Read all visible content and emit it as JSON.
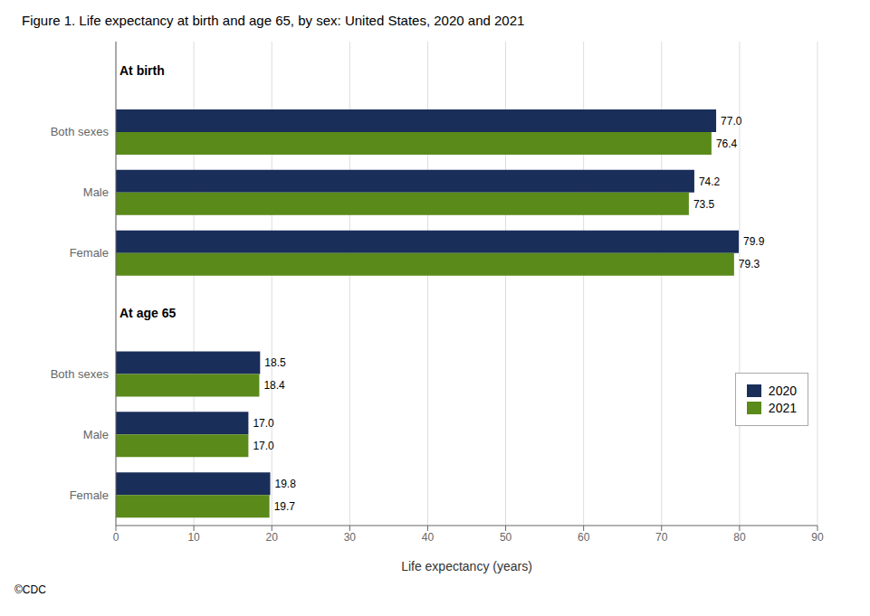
{
  "chart_data": {
    "type": "bar",
    "orientation": "horizontal",
    "title": "Figure 1. Life expectancy at birth and age 65, by sex: United States, 2020 and 2021",
    "xlabel": "Life expectancy (years)",
    "xlim": [
      0,
      90
    ],
    "xticks": [
      0,
      10,
      20,
      30,
      40,
      50,
      60,
      70,
      80,
      90
    ],
    "grid": true,
    "legend": "lower right",
    "data_labels": true,
    "footer": "©CDC",
    "groups": [
      {
        "label": "At birth",
        "categories": [
          "Both sexes",
          "Male",
          "Female"
        ]
      },
      {
        "label": "At age 65",
        "categories": [
          "Both sexes",
          "Male",
          "Female"
        ]
      }
    ],
    "series": [
      {
        "name": "2020",
        "color": "#1a2e5a",
        "values": [
          77.0,
          74.2,
          79.9,
          18.5,
          17.0,
          19.8
        ],
        "value_labels": [
          "77.0",
          "74.2",
          "79.9",
          "18.5",
          "17.0",
          "19.8"
        ]
      },
      {
        "name": "2021",
        "color": "#5a8a1a",
        "values": [
          76.4,
          73.5,
          79.3,
          18.4,
          17.0,
          19.7
        ],
        "value_labels": [
          "76.4",
          "73.5",
          "79.3",
          "18.4",
          "17.0",
          "19.7"
        ]
      }
    ]
  }
}
